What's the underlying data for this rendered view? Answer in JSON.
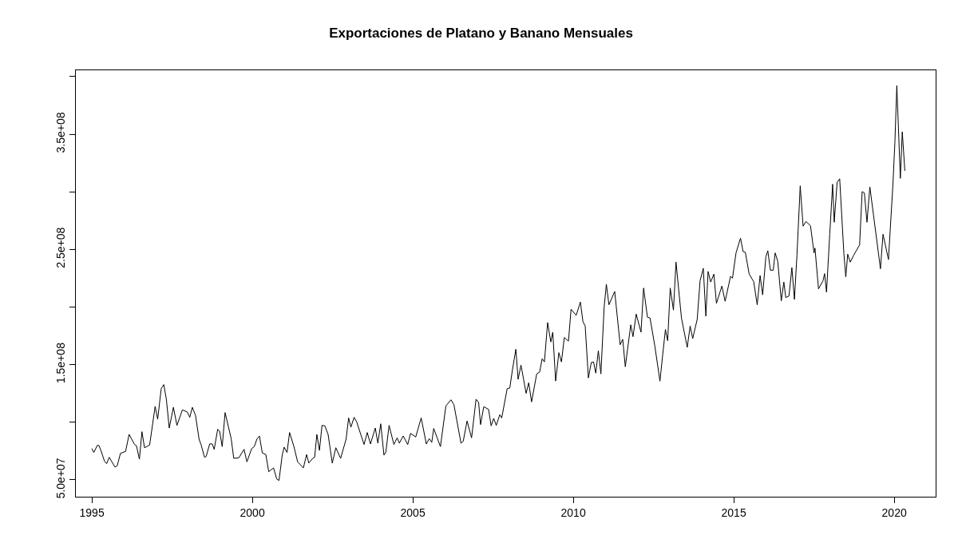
{
  "chart_data": {
    "type": "line",
    "title": "Exportaciones de Platano y Banano Mensuales",
    "x": [
      1995.0,
      1995.06,
      1995.17,
      1995.22,
      1995.29,
      1995.39,
      1995.46,
      1995.54,
      1995.72,
      1995.79,
      1995.89,
      1996.05,
      1996.16,
      1996.33,
      1996.39,
      1996.48,
      1996.56,
      1996.64,
      1996.8,
      1996.97,
      1997.05,
      1997.16,
      1997.24,
      1997.32,
      1997.41,
      1997.54,
      1997.65,
      1997.82,
      1997.97,
      1998.05,
      1998.13,
      1998.23,
      1998.34,
      1998.4,
      1998.51,
      1998.56,
      1998.67,
      1998.75,
      1998.81,
      1998.92,
      1998.98,
      1999.06,
      1999.15,
      1999.34,
      1999.42,
      1999.58,
      1999.74,
      1999.83,
      1999.98,
      2000.06,
      2000.14,
      2000.22,
      2000.31,
      2000.42,
      2000.51,
      2000.66,
      2000.76,
      2000.83,
      2000.93,
      2000.99,
      2001.08,
      2001.16,
      2001.3,
      2001.41,
      2001.59,
      2001.69,
      2001.76,
      2001.88,
      2001.94,
      2002.01,
      2002.09,
      2002.17,
      2002.26,
      2002.36,
      2002.49,
      2002.6,
      2002.75,
      2002.92,
      2003.0,
      2003.07,
      2003.17,
      2003.25,
      2003.48,
      2003.58,
      2003.68,
      2003.83,
      2003.91,
      2004.0,
      2004.1,
      2004.16,
      2004.26,
      2004.41,
      2004.51,
      2004.58,
      2004.7,
      2004.84,
      2004.93,
      2005.09,
      2005.26,
      2005.42,
      2005.51,
      2005.59,
      2005.65,
      2005.86,
      2006.03,
      2006.19,
      2006.28,
      2006.5,
      2006.57,
      2006.69,
      2006.83,
      2006.97,
      2007.05,
      2007.11,
      2007.21,
      2007.36,
      2007.44,
      2007.52,
      2007.6,
      2007.71,
      2007.77,
      2007.94,
      2008.02,
      2008.1,
      2008.21,
      2008.28,
      2008.37,
      2008.53,
      2008.61,
      2008.7,
      2008.86,
      2008.95,
      2009.03,
      2009.1,
      2009.2,
      2009.3,
      2009.36,
      2009.45,
      2009.55,
      2009.63,
      2009.72,
      2009.85,
      2009.93,
      2010.09,
      2010.22,
      2010.3,
      2010.37,
      2010.47,
      2010.56,
      2010.63,
      2010.7,
      2010.78,
      2010.86,
      2010.96,
      2011.03,
      2011.11,
      2011.29,
      2011.46,
      2011.54,
      2011.62,
      2011.79,
      2011.86,
      2011.96,
      2012.11,
      2012.19,
      2012.31,
      2012.39,
      2012.54,
      2012.7,
      2012.77,
      2012.87,
      2012.94,
      2013.02,
      2013.12,
      2013.2,
      2013.37,
      2013.55,
      2013.64,
      2013.72,
      2013.86,
      2013.95,
      2014.05,
      2014.13,
      2014.2,
      2014.28,
      2014.38,
      2014.46,
      2014.63,
      2014.73,
      2014.9,
      2014.96,
      2015.07,
      2015.21,
      2015.29,
      2015.36,
      2015.48,
      2015.62,
      2015.73,
      2015.82,
      2015.9,
      2016.0,
      2016.06,
      2016.14,
      2016.23,
      2016.29,
      2016.37,
      2016.48,
      2016.56,
      2016.62,
      2016.72,
      2016.81,
      2016.89,
      2016.97,
      2017.07,
      2017.16,
      2017.25,
      2017.39,
      2017.5,
      2017.53,
      2017.64,
      2017.78,
      2017.83,
      2017.89,
      2017.99,
      2018.08,
      2018.13,
      2018.22,
      2018.3,
      2018.43,
      2018.49,
      2018.55,
      2018.63,
      2018.74,
      2018.92,
      2019.0,
      2019.07,
      2019.15,
      2019.24,
      2019.57,
      2019.65,
      2019.82,
      2019.96,
      2020.02,
      2020.08,
      2020.19,
      2020.25,
      2020.33
    ],
    "values": [
      77200000.0,
      73800000.0,
      80000000.0,
      79800000.0,
      74900000.0,
      66400000.0,
      64100000.0,
      69600000.0,
      61100000.0,
      62300000.0,
      73100000.0,
      74700000.0,
      89500000.0,
      80700000.0,
      79600000.0,
      68000000.0,
      91800000.0,
      77900000.0,
      80300000.0,
      113800000.0,
      102700000.0,
      129200000.0,
      132700000.0,
      120000000.0,
      95000000.0,
      113000000.0,
      97300000.0,
      110800000.0,
      108900000.0,
      104300000.0,
      113000000.0,
      105900000.0,
      85300000.0,
      80700000.0,
      69600000.0,
      70300000.0,
      81200000.0,
      81200000.0,
      76500000.0,
      93900000.0,
      92300000.0,
      78900000.0,
      108400000.0,
      85800000.0,
      68700000.0,
      69200000.0,
      76500000.0,
      65700000.0,
      77200000.0,
      78900000.0,
      85300000.0,
      88100000.0,
      73400000.0,
      72000000.0,
      57100000.0,
      60400000.0,
      50700000.0,
      49500000.0,
      71500000.0,
      78400000.0,
      73800000.0,
      91100000.0,
      78400000.0,
      65700000.0,
      60400000.0,
      72000000.0,
      64600000.0,
      68700000.0,
      69600000.0,
      89500000.0,
      75600000.0,
      97300000.0,
      96900000.0,
      89500000.0,
      64600000.0,
      77900000.0,
      68700000.0,
      85300000.0,
      103800000.0,
      95700000.0,
      104300000.0,
      100400000.0,
      80700000.0,
      91100000.0,
      81200000.0,
      95000000.0,
      81900000.0,
      98700000.0,
      71500000.0,
      74300000.0,
      97300000.0,
      80700000.0,
      86500000.0,
      81900000.0,
      88100000.0,
      80700000.0,
      90400000.0,
      87200000.0,
      103800000.0,
      81200000.0,
      85800000.0,
      82600000.0,
      94600000.0,
      78900000.0,
      114200000.0,
      119500000.0,
      115300000.0,
      81900000.0,
      83500000.0,
      101100000.0,
      86500000.0,
      120000000.0,
      117200000.0,
      98000000.0,
      113500000.0,
      111200000.0,
      96900000.0,
      103400000.0,
      97300000.0,
      106600000.0,
      103800000.0,
      129200000.0,
      129700000.0,
      144900000.0,
      163400000.0,
      137300000.0,
      149600000.0,
      125100000.0,
      134300000.0,
      117700000.0,
      142000000.0,
      143600000.0,
      155100000.0,
      152400000.0,
      186500000.0,
      169700000.0,
      178200000.0,
      135800000.0,
      160400000.0,
      152400000.0,
      173600000.0,
      170400000.0,
      198100000.0,
      192800000.0,
      204300000.0,
      187400000.0,
      183500000.0,
      138500000.0,
      151900000.0,
      152400000.0,
      142700000.0,
      162100000.0,
      142000000.0,
      199700000.0,
      219800000.0,
      202000000.0,
      213500000.0,
      167300000.0,
      172000000.0,
      148200000.0,
      184600000.0,
      174300000.0,
      193900000.0,
      178200000.0,
      216500000.0,
      191200000.0,
      190500000.0,
      166200000.0,
      135700000.0,
      154600000.0,
      180500000.0,
      170800000.0,
      216500000.0,
      197400000.0,
      239000000.0,
      190500000.0,
      165000000.0,
      183500000.0,
      172700000.0,
      189300000.0,
      222800000.0,
      233600000.0,
      192100000.0,
      230900000.0,
      221700000.0,
      228600000.0,
      203200000.0,
      218200000.0,
      205000000.0,
      226700000.0,
      225100000.0,
      247000000.0,
      259800000.0,
      248200000.0,
      247500000.0,
      228600000.0,
      222100000.0,
      202000000.0,
      227400000.0,
      210600000.0,
      243600000.0,
      248900000.0,
      232000000.0,
      232000000.0,
      247000000.0,
      239700000.0,
      205400000.0,
      221700000.0,
      208200000.0,
      209600000.0,
      234300000.0,
      206600000.0,
      245900000.0,
      305200000.0,
      270200000.0,
      274300000.0,
      270600000.0,
      247000000.0,
      251200000.0,
      215800000.0,
      222800000.0,
      229000000.0,
      212900000.0,
      263200000.0,
      306600000.0,
      273600000.0,
      308300000.0,
      311300000.0,
      246600000.0,
      226200000.0,
      245900000.0,
      239000000.0,
      245200000.0,
      253900000.0,
      300200000.0,
      299000000.0,
      273600000.0,
      304300000.0,
      233200000.0,
      263200000.0,
      241300000.0,
      307100000.0,
      342900000.0,
      392100000.0,
      311700000.0,
      352100000.0,
      318200000.0
    ],
    "color": "#000000",
    "line_style": "solid",
    "marker": "none",
    "xlim": [
      1994.5,
      2021.29
    ],
    "xticks": [
      1995,
      2000,
      2005,
      2010,
      2015,
      2020
    ],
    "ylim": [
      35400000.0,
      405500000.0
    ],
    "yticks": [
      {
        "value": 50000000.0,
        "label": "5.0e+07"
      },
      {
        "value": 100000000.0,
        "label": null
      },
      {
        "value": 150000000.0,
        "label": "1.5e+08"
      },
      {
        "value": 200000000.0,
        "label": null
      },
      {
        "value": 250000000.0,
        "label": "2.5e+08"
      },
      {
        "value": 300000000.0,
        "label": null
      },
      {
        "value": 350000000.0,
        "label": "3.5e+08"
      },
      {
        "value": 400000000.0,
        "label": null
      }
    ],
    "legend": false
  }
}
